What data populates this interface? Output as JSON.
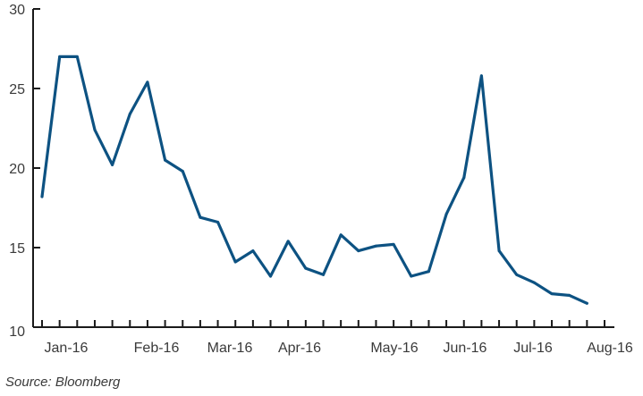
{
  "chart_data": {
    "type": "line",
    "title": "",
    "xlabel": "",
    "ylabel": "",
    "ylim": [
      10,
      30
    ],
    "y_ticks": [
      10,
      15,
      20,
      25,
      30
    ],
    "x_tick_labels": [
      "Jan-16",
      "Feb-16",
      "Mar-16",
      "Apr-16",
      "May-16",
      "Jun-16",
      "Jul-16",
      "Aug-16"
    ],
    "grid": false,
    "legend": "none",
    "series": [
      {
        "color": "#0d5282",
        "x": [
          "2015-12-31",
          "2016-01-08",
          "2016-01-15",
          "2016-01-22",
          "2016-01-29",
          "2016-02-05",
          "2016-02-12",
          "2016-02-19",
          "2016-02-26",
          "2016-03-04",
          "2016-03-11",
          "2016-03-18",
          "2016-03-25",
          "2016-04-01",
          "2016-04-08",
          "2016-04-15",
          "2016-04-22",
          "2016-04-29",
          "2016-05-06",
          "2016-05-13",
          "2016-05-20",
          "2016-05-27",
          "2016-06-03",
          "2016-06-10",
          "2016-06-17",
          "2016-06-24",
          "2016-07-01",
          "2016-07-08",
          "2016-07-15",
          "2016-07-22",
          "2016-07-29",
          "2016-08-05",
          "2016-08-12"
        ],
        "values": [
          18.2,
          27.0,
          27.0,
          22.4,
          20.2,
          23.4,
          25.4,
          20.5,
          19.8,
          16.9,
          16.6,
          14.1,
          14.8,
          13.2,
          15.4,
          13.7,
          13.3,
          15.8,
          14.8,
          15.1,
          15.2,
          13.2,
          13.5,
          17.1,
          19.4,
          25.8,
          14.8,
          13.3,
          12.8,
          12.1,
          12.0,
          11.5,
          null
        ]
      }
    ]
  },
  "source": "Source: Bloomberg",
  "colors": {
    "line": "#0d5282",
    "axis": "#1a1a1a",
    "text": "#3a3a3a"
  }
}
